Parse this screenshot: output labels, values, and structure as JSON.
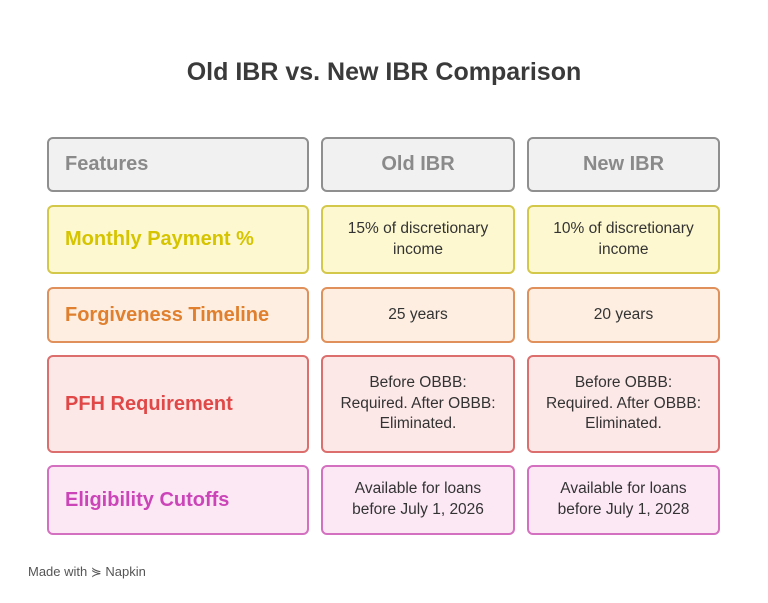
{
  "title": "Old IBR vs. New IBR Comparison",
  "table": {
    "header": [
      "Features",
      "Old IBR",
      "New IBR"
    ],
    "rows": [
      [
        "Monthly Payment %",
        "15% of discretionary income",
        "10% of discretionary income"
      ],
      [
        "Forgiveness Timeline",
        "25 years",
        "20 years"
      ],
      [
        "PFH Requirement",
        "Before OBBB: Required. After OBBB: Eliminated.",
        "Before OBBB: Required. After OBBB: Eliminated."
      ],
      [
        "Eligibility Cutoffs",
        "Available for loans before July 1, 2026",
        "Available for loans before July 1, 2028"
      ]
    ]
  },
  "footer": {
    "made_with": "Made with",
    "brand": "Napkin"
  }
}
